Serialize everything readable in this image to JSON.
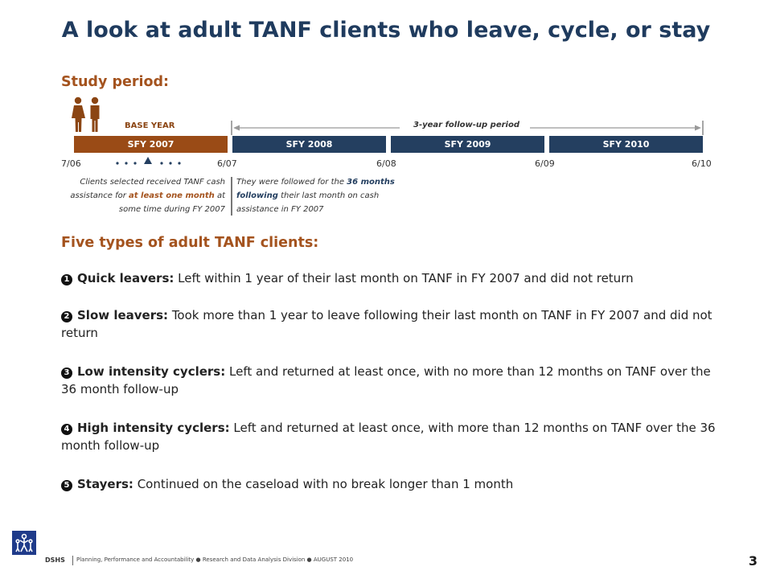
{
  "title": "A look at adult TANF clients who leave, cycle, or stay",
  "study_heading": "Study period:",
  "timeline": {
    "base_year_label": "BASE YEAR",
    "follow_up_label": "3-year follow-up period",
    "bars": [
      "SFY 2007",
      "SFY 2008",
      "SFY 2009",
      "SFY 2010"
    ],
    "ticks": [
      "7/06",
      "6/07",
      "6/08",
      "6/09",
      "6/10"
    ],
    "note_left": {
      "pre": "Clients selected received TANF cash assistance for ",
      "highlight": "at least one month",
      "post": " at some time during FY 2007"
    },
    "note_right": {
      "pre": "They were followed for the ",
      "highlight1": "36 months following",
      "post": " their last month on cash assistance in FY 2007"
    }
  },
  "types_heading": "Five types of adult TANF clients:",
  "types": [
    {
      "num": "1",
      "label": "Quick leavers:",
      "text": " Left within 1 year of their last month on TANF in FY 2007 and did not return"
    },
    {
      "num": "2",
      "label": "Slow leavers:",
      "text": " Took more than 1 year to leave following their last month on TANF in FY 2007 and did not return"
    },
    {
      "num": "3",
      "label": "Low intensity cyclers:",
      "text": " Left and returned at least once, with no more than 12 months on TANF over the 36 month follow-up"
    },
    {
      "num": "4",
      "label": "High intensity cyclers:",
      "text": " Left and returned at least once, with more than 12 months on TANF over the 36 month follow-up"
    },
    {
      "num": "5",
      "label": "Stayers:",
      "text": " Continued on the caseload with no break longer than 1 month"
    }
  ],
  "footer": {
    "org": "DSHS",
    "text": "Planning, Performance and Accountability ● Research and Data Analysis Division ● AUGUST 2010",
    "page": "3"
  },
  "colors": {
    "title": "#1f3b5e",
    "accent": "#a4531e",
    "navy_bar": "#243f60",
    "brown_bar": "#9a4b16"
  }
}
